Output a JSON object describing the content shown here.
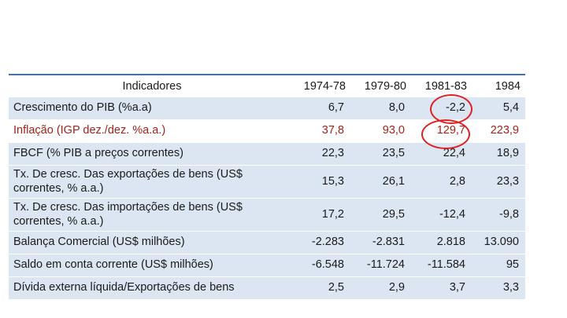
{
  "table": {
    "header": {
      "indicator": "Indicadores",
      "years": [
        "1974-78",
        "1979-80",
        "1981-83",
        "1984"
      ]
    },
    "rows": [
      {
        "label": "Crescimento do PIB (%a.a)",
        "values": [
          "6,7",
          "8,0",
          "-2,2",
          "5,4"
        ]
      },
      {
        "label": "Inflação (IGP dez./dez. %a.a.)",
        "values": [
          "37,8",
          "93,0",
          "129,7",
          "223,9"
        ]
      },
      {
        "label": "FBCF (% PIB a preços correntes)",
        "values": [
          "22,3",
          "23,5",
          "22,4",
          "18,9"
        ]
      },
      {
        "label": "Tx. De cresc. Das exportações de bens (US$ correntes, % a.a.)",
        "values": [
          "15,3",
          "26,1",
          "2,8",
          "23,3"
        ]
      },
      {
        "label": "Tx. De cresc. Das importações de bens (US$ correntes, % a.a.)",
        "values": [
          "17,2",
          "29,5",
          "-12,4",
          "-9,8"
        ]
      },
      {
        "label": "Balança Comercial (US$ milhões)",
        "values": [
          "-2.283",
          "-2.831",
          "2.818",
          "13.090"
        ]
      },
      {
        "label": "Saldo em conta corrente (US$ milhões)",
        "values": [
          "-6.548",
          "-11.724",
          "-11.584",
          "95"
        ]
      },
      {
        "label": "Dívida externa líquida/Exportações de bens",
        "values": [
          "2,5",
          "2,9",
          "3,7",
          "3,3"
        ]
      }
    ]
  },
  "colors": {
    "row_band": "#dce6f2",
    "header_rule": "#4a6fa5",
    "inflation_text": "#a0231c",
    "annotation_circle": "#e02020"
  }
}
